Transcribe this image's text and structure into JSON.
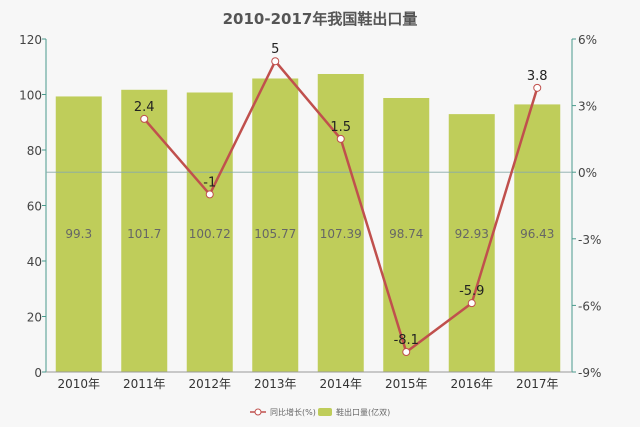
{
  "chart_data": {
    "type": "bar+line",
    "title": "2010-2017年我国鞋出口量",
    "categories": [
      "2010年",
      "2011年",
      "2012年",
      "2013年",
      "2014年",
      "2015年",
      "2016年",
      "2017年"
    ],
    "series": [
      {
        "name": "鞋出口量(亿双)",
        "type": "bar",
        "axis": "left",
        "values": [
          99.3,
          101.7,
          100.72,
          105.77,
          107.39,
          98.74,
          92.93,
          96.43
        ],
        "labels": [
          "99.3",
          "101.7",
          "100.72",
          "105.77",
          "107.39",
          "98.74",
          "92.93",
          "96.43"
        ]
      },
      {
        "name": "同比增长(%)",
        "type": "line",
        "axis": "right",
        "values": [
          null,
          2.4,
          -1,
          5,
          1.5,
          -8.1,
          -5.9,
          3.8
        ],
        "labels": [
          "",
          "2.4",
          "-1",
          "5",
          "1.5",
          "-8.1",
          "-5.9",
          "3.8"
        ]
      }
    ],
    "left_axis": {
      "ylim": [
        0,
        120
      ],
      "ticks": [
        "0",
        "20",
        "40",
        "60",
        "80",
        "100",
        "120"
      ]
    },
    "right_axis": {
      "ylim": [
        -9,
        6
      ],
      "ticks": [
        "-9%",
        "-6%",
        "-3%",
        "0%",
        "3%",
        "6%"
      ]
    },
    "legend_position": "bottom",
    "colors": {
      "bar": "#bfcd5a",
      "line": "#c0504d",
      "axis": "#4a9a8c"
    }
  }
}
